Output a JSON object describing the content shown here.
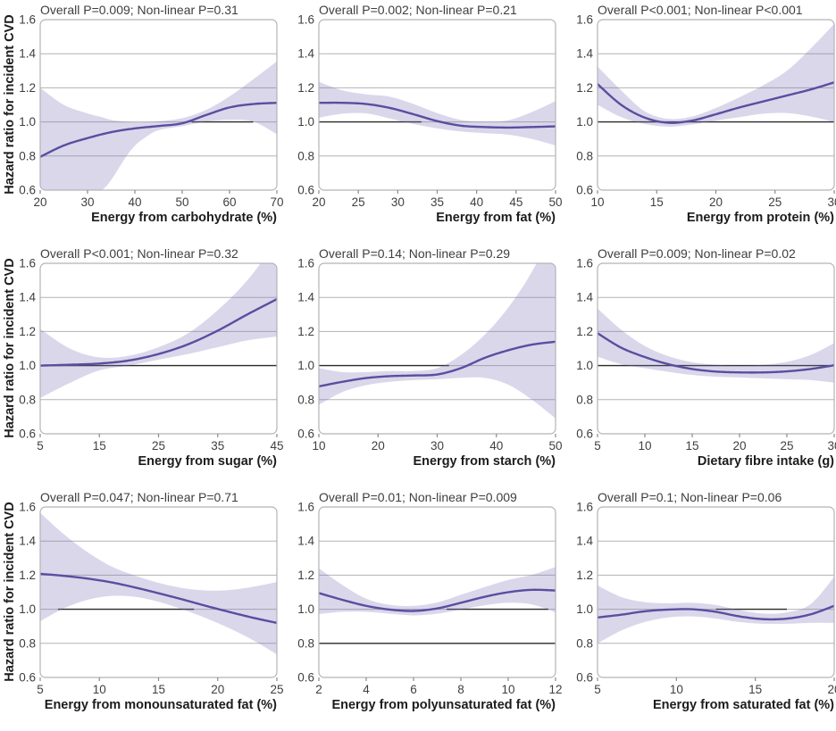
{
  "figure": {
    "ylabel": "Hazard ratio for incident CVD",
    "ylim": [
      0.6,
      1.6
    ],
    "yticks": [
      0.6,
      0.8,
      1.0,
      1.2,
      1.4,
      1.6
    ],
    "grid_on": true,
    "reference_value": 1.0
  },
  "colors": {
    "curve": "#584f9f",
    "band": "#7a70b8",
    "band_opacity": 0.28,
    "grid": "#b3b3b3",
    "border": "#b5b2b8",
    "reference": "#2b2b2b",
    "tick": "#8a8a8a",
    "tick_label": "#3f3f3f",
    "title": "#3e3e3e",
    "axis_label": "#1c1c1c"
  },
  "chart_data": [
    {
      "type": "line",
      "title": "Overall P=0.009; Non-linear P=0.31",
      "overall_p": "0.009",
      "nonlinear_p": "0.31",
      "xlabel": "Energy from carbohydrate (%)",
      "ylabel": "Hazard ratio for incident CVD",
      "xlim": [
        20,
        70
      ],
      "xticks": [
        20,
        30,
        40,
        50,
        60,
        70
      ],
      "curve": [
        [
          20,
          0.795
        ],
        [
          25,
          0.862
        ],
        [
          30,
          0.905
        ],
        [
          35,
          0.94
        ],
        [
          40,
          0.962
        ],
        [
          45,
          0.976
        ],
        [
          50,
          0.992
        ],
        [
          55,
          1.04
        ],
        [
          60,
          1.085
        ],
        [
          65,
          1.105
        ],
        [
          70,
          1.112
        ]
      ],
      "band": [
        [
          20,
          0.42,
          1.2
        ],
        [
          25,
          0.5,
          1.1
        ],
        [
          30,
          0.565,
          1.05
        ],
        [
          33,
          0.6,
          1.028
        ],
        [
          35,
          0.66,
          1.012
        ],
        [
          38,
          0.79,
          1.002
        ],
        [
          40,
          0.86,
          0.998
        ],
        [
          42,
          0.905,
          0.998
        ],
        [
          45,
          0.952,
          1.004
        ],
        [
          50,
          0.975,
          1.022
        ],
        [
          55,
          1.002,
          1.07
        ],
        [
          60,
          1.012,
          1.15
        ],
        [
          65,
          1.002,
          1.25
        ],
        [
          70,
          0.928,
          1.355
        ]
      ],
      "ref_segments": [
        [
          52,
          65,
          1.0
        ]
      ]
    },
    {
      "type": "line",
      "title": "Overall P=0.002; Non-linear P=0.21",
      "overall_p": "0.002",
      "nonlinear_p": "0.21",
      "xlabel": "Energy from fat (%)",
      "ylabel": "Hazard ratio for incident CVD",
      "xlim": [
        20,
        50
      ],
      "xticks": [
        20,
        25,
        30,
        35,
        40,
        45,
        50
      ],
      "curve": [
        [
          20,
          1.112
        ],
        [
          23,
          1.112
        ],
        [
          26,
          1.105
        ],
        [
          29,
          1.082
        ],
        [
          32,
          1.045
        ],
        [
          35,
          1.005
        ],
        [
          38,
          0.978
        ],
        [
          41,
          0.97
        ],
        [
          44,
          0.967
        ],
        [
          47,
          0.97
        ],
        [
          50,
          0.974
        ]
      ],
      "band": [
        [
          20,
          1.025,
          1.235
        ],
        [
          23,
          1.048,
          1.185
        ],
        [
          26,
          1.05,
          1.162
        ],
        [
          29,
          1.02,
          1.148
        ],
        [
          32,
          0.988,
          1.105
        ],
        [
          35,
          0.962,
          1.052
        ],
        [
          38,
          0.944,
          1.012
        ],
        [
          41,
          0.934,
          1.002
        ],
        [
          44,
          0.925,
          1.01
        ],
        [
          47,
          0.9,
          1.058
        ],
        [
          50,
          0.862,
          1.122
        ]
      ],
      "ref_segments": [
        [
          20,
          33,
          1.0
        ]
      ]
    },
    {
      "type": "line",
      "title": "Overall P<0.001; Non-linear P<0.001",
      "overall_p": "<0.001",
      "nonlinear_p": "<0.001",
      "xlabel": "Energy from protein (%)",
      "ylabel": "Hazard ratio for incident CVD",
      "xlim": [
        10,
        30
      ],
      "xticks": [
        10,
        15,
        20,
        25,
        30
      ],
      "curve": [
        [
          10,
          1.222
        ],
        [
          12,
          1.1
        ],
        [
          14,
          1.025
        ],
        [
          16,
          0.995
        ],
        [
          18,
          1.008
        ],
        [
          20,
          1.045
        ],
        [
          22,
          1.085
        ],
        [
          24,
          1.12
        ],
        [
          26,
          1.155
        ],
        [
          28,
          1.19
        ],
        [
          30,
          1.232
        ]
      ],
      "band": [
        [
          10,
          1.1,
          1.325
        ],
        [
          12,
          1.028,
          1.185
        ],
        [
          14,
          0.988,
          1.062
        ],
        [
          16,
          0.972,
          1.018
        ],
        [
          18,
          0.985,
          1.032
        ],
        [
          20,
          1.008,
          1.082
        ],
        [
          22,
          1.028,
          1.145
        ],
        [
          24,
          1.048,
          1.215
        ],
        [
          26,
          1.052,
          1.3
        ],
        [
          28,
          1.032,
          1.43
        ],
        [
          30,
          1.0,
          1.575
        ]
      ],
      "ref_segments": [
        [
          10,
          30,
          1.0
        ]
      ]
    },
    {
      "type": "line",
      "title": "Overall P<0.001; Non-linear P=0.32",
      "overall_p": "<0.001",
      "nonlinear_p": "0.32",
      "xlabel": "Energy from sugar (%)",
      "ylabel": "Hazard ratio for incident CVD",
      "xlim": [
        5,
        45
      ],
      "xticks": [
        5,
        15,
        25,
        35,
        45
      ],
      "curve": [
        [
          5,
          1.0
        ],
        [
          10,
          1.005
        ],
        [
          15,
          1.012
        ],
        [
          20,
          1.03
        ],
        [
          25,
          1.068
        ],
        [
          30,
          1.125
        ],
        [
          35,
          1.205
        ],
        [
          40,
          1.3
        ],
        [
          45,
          1.39
        ]
      ],
      "band": [
        [
          5,
          0.81,
          1.215
        ],
        [
          10,
          0.898,
          1.1
        ],
        [
          15,
          0.972,
          1.048
        ],
        [
          20,
          1.0,
          1.058
        ],
        [
          25,
          1.035,
          1.108
        ],
        [
          30,
          1.068,
          1.19
        ],
        [
          35,
          1.108,
          1.325
        ],
        [
          40,
          1.148,
          1.5
        ],
        [
          45,
          1.17,
          1.73
        ]
      ],
      "ref_segments": [
        [
          5,
          45,
          1.0
        ]
      ]
    },
    {
      "type": "line",
      "title": "Overall P=0.14; Non-linear P=0.29",
      "overall_p": "0.14",
      "nonlinear_p": "0.29",
      "xlabel": "Energy from starch (%)",
      "ylabel": "Hazard ratio for incident CVD",
      "xlim": [
        10,
        50
      ],
      "xticks": [
        10,
        20,
        30,
        40,
        50
      ],
      "curve": [
        [
          10,
          0.878
        ],
        [
          14,
          0.905
        ],
        [
          18,
          0.927
        ],
        [
          22,
          0.938
        ],
        [
          26,
          0.942
        ],
        [
          30,
          0.948
        ],
        [
          34,
          0.985
        ],
        [
          38,
          1.045
        ],
        [
          42,
          1.09
        ],
        [
          46,
          1.123
        ],
        [
          50,
          1.14
        ]
      ],
      "band": [
        [
          10,
          0.77,
          0.985
        ],
        [
          14,
          0.845,
          0.962
        ],
        [
          18,
          0.885,
          0.962
        ],
        [
          22,
          0.905,
          0.968
        ],
        [
          26,
          0.915,
          0.968
        ],
        [
          30,
          0.92,
          0.985
        ],
        [
          34,
          0.928,
          1.062
        ],
        [
          38,
          0.928,
          1.18
        ],
        [
          42,
          0.888,
          1.34
        ],
        [
          46,
          0.8,
          1.55
        ],
        [
          50,
          0.69,
          1.82
        ]
      ],
      "ref_segments": [
        [
          10,
          32,
          1.0
        ]
      ]
    },
    {
      "type": "line",
      "title": "Overall P=0.009; Non-linear P=0.02",
      "overall_p": "0.009",
      "nonlinear_p": "0.02",
      "xlabel": "Dietary fibre intake (g)",
      "ylabel": "Hazard ratio for incident CVD",
      "xlim": [
        5,
        30
      ],
      "xticks": [
        5,
        10,
        15,
        20,
        25,
        30
      ],
      "curve": [
        [
          5,
          1.19
        ],
        [
          7.5,
          1.105
        ],
        [
          10,
          1.05
        ],
        [
          12.5,
          1.008
        ],
        [
          15,
          0.98
        ],
        [
          17.5,
          0.965
        ],
        [
          20,
          0.96
        ],
        [
          22.5,
          0.96
        ],
        [
          25,
          0.966
        ],
        [
          27.5,
          0.98
        ],
        [
          30,
          1.002
        ]
      ],
      "band": [
        [
          5,
          1.052,
          1.335
        ],
        [
          7.5,
          1.008,
          1.21
        ],
        [
          10,
          0.985,
          1.115
        ],
        [
          12.5,
          0.963,
          1.055
        ],
        [
          15,
          0.945,
          1.02
        ],
        [
          17.5,
          0.935,
          1.005
        ],
        [
          20,
          0.93,
          1.0
        ],
        [
          22.5,
          0.925,
          1.005
        ],
        [
          25,
          0.92,
          1.022
        ],
        [
          27.5,
          0.915,
          1.062
        ],
        [
          30,
          0.9,
          1.132
        ]
      ],
      "ref_segments": [
        [
          5,
          30,
          1.0
        ]
      ]
    },
    {
      "type": "line",
      "title": "Overall P=0.047; Non-linear P=0.71",
      "overall_p": "0.047",
      "nonlinear_p": "0.71",
      "xlabel": "Energy from monounsaturated fat (%)",
      "ylabel": "Hazard ratio for incident CVD",
      "xlim": [
        5,
        25
      ],
      "xticks": [
        5,
        10,
        15,
        20,
        25
      ],
      "curve": [
        [
          5,
          1.208
        ],
        [
          7,
          1.196
        ],
        [
          9,
          1.18
        ],
        [
          11,
          1.158
        ],
        [
          13,
          1.128
        ],
        [
          15,
          1.094
        ],
        [
          17,
          1.058
        ],
        [
          19,
          1.02
        ],
        [
          21,
          0.984
        ],
        [
          23,
          0.95
        ],
        [
          25,
          0.92
        ]
      ],
      "band": [
        [
          5,
          0.93,
          1.565
        ],
        [
          7,
          1.005,
          1.44
        ],
        [
          9,
          1.055,
          1.335
        ],
        [
          11,
          1.078,
          1.252
        ],
        [
          13,
          1.073,
          1.198
        ],
        [
          15,
          1.044,
          1.155
        ],
        [
          17,
          1.0,
          1.125
        ],
        [
          19,
          0.948,
          1.11
        ],
        [
          21,
          0.888,
          1.113
        ],
        [
          23,
          0.818,
          1.132
        ],
        [
          25,
          0.735,
          1.16
        ]
      ],
      "ref_segments": [
        [
          6.5,
          18,
          1.0
        ]
      ]
    },
    {
      "type": "line",
      "title": "Overall P=0.01; Non-linear P=0.009",
      "overall_p": "0.01",
      "nonlinear_p": "0.009",
      "xlabel": "Energy from polyunsaturated fat (%)",
      "ylabel": "Hazard ratio for incident CVD",
      "xlim": [
        2,
        12
      ],
      "xticks": [
        2,
        4,
        6,
        8,
        10,
        12
      ],
      "curve": [
        [
          2,
          1.095
        ],
        [
          3,
          1.055
        ],
        [
          4,
          1.02
        ],
        [
          5,
          0.998
        ],
        [
          6,
          0.99
        ],
        [
          7,
          1.005
        ],
        [
          8,
          1.038
        ],
        [
          9,
          1.073
        ],
        [
          10,
          1.1
        ],
        [
          11,
          1.114
        ],
        [
          12,
          1.11
        ]
      ],
      "band": [
        [
          2,
          0.972,
          1.24
        ],
        [
          3,
          0.985,
          1.142
        ],
        [
          4,
          0.985,
          1.062
        ],
        [
          5,
          0.974,
          1.026
        ],
        [
          6,
          0.964,
          1.02
        ],
        [
          7,
          0.974,
          1.04
        ],
        [
          8,
          0.998,
          1.085
        ],
        [
          9,
          1.023,
          1.13
        ],
        [
          10,
          1.038,
          1.172
        ],
        [
          11,
          1.028,
          1.202
        ],
        [
          12,
          0.982,
          1.248
        ]
      ],
      "ref_segments": [
        [
          7.4,
          11.7,
          1.0
        ],
        [
          2,
          12,
          0.8
        ]
      ]
    },
    {
      "type": "line",
      "title": "Overall P=0.1; Non-linear P=0.06",
      "overall_p": "0.1",
      "nonlinear_p": "0.06",
      "xlabel": "Energy from saturated fat (%)",
      "ylabel": "Hazard ratio for incident CVD",
      "xlim": [
        5,
        20
      ],
      "xticks": [
        5,
        10,
        15,
        20
      ],
      "curve": [
        [
          5,
          0.952
        ],
        [
          6.5,
          0.968
        ],
        [
          8,
          0.988
        ],
        [
          9.5,
          0.998
        ],
        [
          11,
          1.0
        ],
        [
          12.5,
          0.985
        ],
        [
          14,
          0.958
        ],
        [
          15.5,
          0.942
        ],
        [
          17,
          0.945
        ],
        [
          18.5,
          0.97
        ],
        [
          20,
          1.02
        ]
      ],
      "band": [
        [
          5,
          0.8,
          1.14
        ],
        [
          6.5,
          0.875,
          1.072
        ],
        [
          8,
          0.925,
          1.042
        ],
        [
          9.5,
          0.952,
          1.035
        ],
        [
          11,
          0.958,
          1.038
        ],
        [
          12.5,
          0.945,
          1.025
        ],
        [
          14,
          0.925,
          0.995
        ],
        [
          15.5,
          0.915,
          0.975
        ],
        [
          17,
          0.915,
          0.982
        ],
        [
          18.5,
          0.92,
          1.03
        ],
        [
          20,
          0.92,
          1.19
        ]
      ],
      "ref_segments": [
        [
          12.5,
          17,
          1.0
        ]
      ]
    }
  ]
}
